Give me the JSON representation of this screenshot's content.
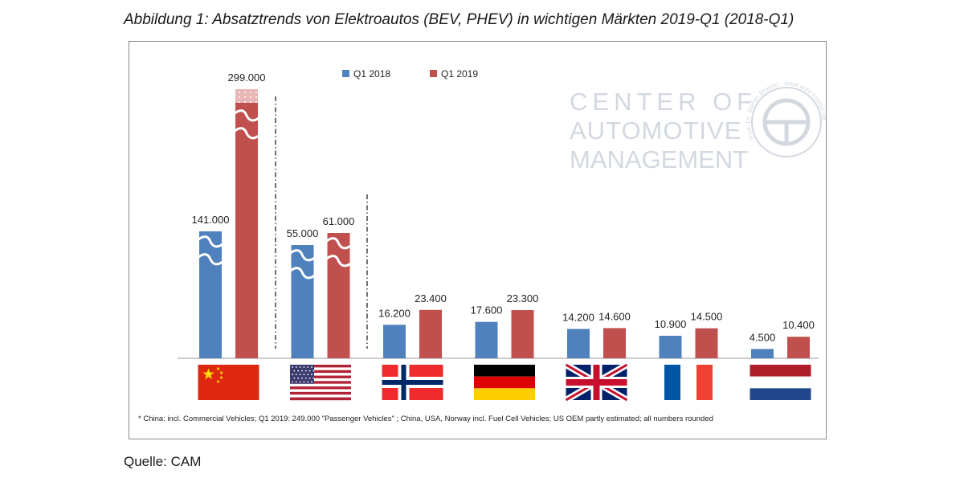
{
  "title": "Abbildung 1: Absatztrends von Elektroautos (BEV, PHEV) in wichtigen Märkten 2019-Q1 (2018-Q1)",
  "source": "Quelle: CAM",
  "footnote": "* China: incl. Commercial Vehicles; Q1 2019: 249.000 \"Passenger Vehicles\" ; China, USA, Norway incl. Fuel Cell Vehicles; US OEM partly estimated; all numbers rounded",
  "watermark": {
    "line1": "CENTER OF",
    "line2": "AUTOMOTIVE",
    "line3": "MANAGEMENT",
    "seal_text": "Prof. Dr. Stefan Bratzel · www.auto-institut.de"
  },
  "colors": {
    "q1_2018": "#4f81bd",
    "q1_2019": "#c0504d",
    "watermark": "#d3d8e0"
  },
  "chart_data": {
    "type": "bar",
    "title": "Abbildung 1: Absatztrends von Elektroautos (BEV, PHEV) in wichtigen Märkten 2019-Q1 (2018-Q1)",
    "categories": [
      "China",
      "USA",
      "Norwegen",
      "Deutschland",
      "Großbritannien",
      "Frankreich",
      "Niederlande"
    ],
    "flags": [
      "china-flag",
      "usa-flag",
      "norway-flag",
      "germany-flag",
      "uk-flag",
      "france-flag",
      "netherlands-flag"
    ],
    "series": [
      {
        "name": "Q1 2018",
        "values": [
          141000,
          55000,
          16200,
          17600,
          14200,
          10900,
          4500
        ],
        "labels": [
          "141.000",
          "55.000",
          "16.200",
          "17.600",
          "14.200",
          "10.900",
          "4.500"
        ]
      },
      {
        "name": "Q1 2019",
        "values": [
          299000,
          61000,
          23400,
          23300,
          14600,
          14500,
          10400
        ],
        "labels": [
          "299.000",
          "61.000",
          "23.400",
          "23.300",
          "14.600",
          "14.500",
          "10.400"
        ]
      }
    ],
    "axis_breaks": [
      "China",
      "USA"
    ],
    "china_q1_2019_passenger_vehicles": 249000,
    "legend_position": "top-center",
    "xlabel": "",
    "ylabel": ""
  }
}
